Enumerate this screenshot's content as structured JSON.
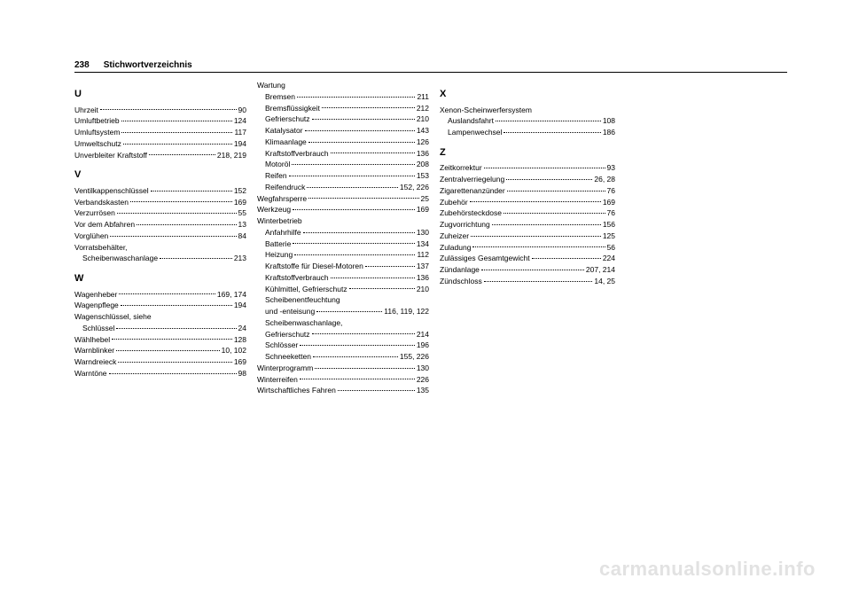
{
  "page_number": "238",
  "header_title": "Stichwortverzeichnis",
  "watermark": "carmanualsonline.info",
  "columns": [
    [
      {
        "type": "letter",
        "text": "U"
      },
      {
        "label": "Uhrzeit",
        "pages": "90"
      },
      {
        "label": "Umluftbetrieb",
        "pages": "124"
      },
      {
        "label": "Umluftsystem",
        "pages": "117"
      },
      {
        "label": "Umweltschutz",
        "pages": "194"
      },
      {
        "label": "Unverbleiter Kraftstoff",
        "pages": "218, 219"
      },
      {
        "type": "letter",
        "text": "V"
      },
      {
        "label": "Ventilkappenschlüssel",
        "pages": "152"
      },
      {
        "label": "Verbandskasten",
        "pages": "169"
      },
      {
        "label": "Verzurrösen",
        "pages": "55"
      },
      {
        "label": "Vor dem Abfahren",
        "pages": "13"
      },
      {
        "label": "Vorglühen",
        "pages": "84"
      },
      {
        "label": "Vorratsbehälter,",
        "nopages": true
      },
      {
        "label": "Scheibenwaschanlage",
        "pages": "213",
        "indent": true
      },
      {
        "type": "letter",
        "text": "W"
      },
      {
        "label": "Wagenheber",
        "pages": "169, 174"
      },
      {
        "label": "Wagenpflege",
        "pages": "194"
      },
      {
        "label": "Wagenschlüssel, siehe",
        "nopages": true
      },
      {
        "label": "Schlüssel",
        "pages": "24",
        "indent": true
      },
      {
        "label": "Wählhebel",
        "pages": "128"
      },
      {
        "label": "Warnblinker",
        "pages": "10, 102"
      },
      {
        "label": "Warndreieck",
        "pages": "169"
      },
      {
        "label": "Warntöne",
        "pages": "98"
      }
    ],
    [
      {
        "label": "Wartung",
        "nopages": true
      },
      {
        "label": "Bremsen",
        "pages": "211",
        "indent": true
      },
      {
        "label": "Bremsflüssigkeit",
        "pages": "212",
        "indent": true
      },
      {
        "label": "Gefrierschutz",
        "pages": "210",
        "indent": true
      },
      {
        "label": "Katalysator",
        "pages": "143",
        "indent": true
      },
      {
        "label": "Klimaanlage",
        "pages": "126",
        "indent": true
      },
      {
        "label": "Kraftstoffverbrauch",
        "pages": "136",
        "indent": true
      },
      {
        "label": "Motoröl",
        "pages": "208",
        "indent": true
      },
      {
        "label": "Reifen",
        "pages": "153",
        "indent": true
      },
      {
        "label": "Reifendruck",
        "pages": "152, 226",
        "indent": true
      },
      {
        "label": "Wegfahrsperre",
        "pages": "25"
      },
      {
        "label": "Werkzeug",
        "pages": "169"
      },
      {
        "label": "Winterbetrieb",
        "nopages": true
      },
      {
        "label": "Anfahrhilfe",
        "pages": "130",
        "indent": true
      },
      {
        "label": "Batterie",
        "pages": "134",
        "indent": true
      },
      {
        "label": "Heizung",
        "pages": "112",
        "indent": true
      },
      {
        "label": "Kraftstoffe für Diesel-Motoren",
        "pages": "137",
        "indent": true
      },
      {
        "label": "Kraftstoffverbrauch",
        "pages": "136",
        "indent": true
      },
      {
        "label": "Kühlmittel, Gefrierschutz",
        "pages": "210",
        "indent": true
      },
      {
        "label": "Scheibenentfeuchtung",
        "nopages": true,
        "indent": true
      },
      {
        "label": "und -enteisung",
        "pages": "116, 119, 122",
        "indent": true
      },
      {
        "label": "Scheibenwaschanlage,",
        "nopages": true,
        "indent": true
      },
      {
        "label": "Gefrierschutz",
        "pages": "214",
        "indent": true
      },
      {
        "label": "Schlösser",
        "pages": "196",
        "indent": true
      },
      {
        "label": "Schneeketten",
        "pages": "155, 226",
        "indent": true
      },
      {
        "label": "Winterprogramm",
        "pages": "130"
      },
      {
        "label": "Winterreifen",
        "pages": "226"
      },
      {
        "label": "Wirtschaftliches Fahren",
        "pages": "135"
      }
    ],
    [
      {
        "type": "letter",
        "text": "X"
      },
      {
        "label": "Xenon-Scheinwerfersystem",
        "nopages": true
      },
      {
        "label": "Auslandsfahrt",
        "pages": "108",
        "indent": true
      },
      {
        "label": "Lampenwechsel",
        "pages": "186",
        "indent": true
      },
      {
        "type": "letter",
        "text": "Z"
      },
      {
        "label": "Zeitkorrektur",
        "pages": "93"
      },
      {
        "label": "Zentralverriegelung",
        "pages": "26, 28"
      },
      {
        "label": "Zigarettenanzünder",
        "pages": "76"
      },
      {
        "label": "Zubehör",
        "pages": "169"
      },
      {
        "label": "Zubehörsteckdose",
        "pages": "76"
      },
      {
        "label": "Zugvorrichtung",
        "pages": "156"
      },
      {
        "label": "Zuheizer",
        "pages": "125"
      },
      {
        "label": "Zuladung",
        "pages": "56"
      },
      {
        "label": "Zulässiges Gesamtgewicht",
        "pages": "224"
      },
      {
        "label": "Zündanlage",
        "pages": "207, 214"
      },
      {
        "label": "Zündschloss",
        "pages": "14, 25"
      }
    ]
  ]
}
